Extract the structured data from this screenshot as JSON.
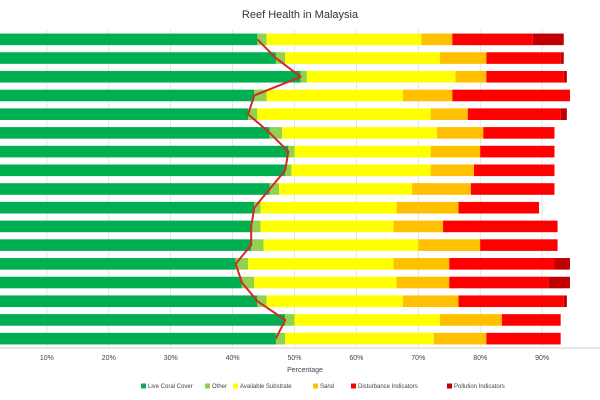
{
  "chart_data": {
    "type": "bar",
    "orientation": "horizontal",
    "stacked": true,
    "title": "Reef Health in Malaysia",
    "xlabel": "Percentage",
    "ylabel": "",
    "xlim": [
      0,
      100
    ],
    "x_ticks": [
      "10%",
      "20%",
      "30%",
      "40%",
      "50%",
      "60%",
      "70%",
      "80%",
      "90%"
    ],
    "x_tick_values": [
      10,
      20,
      30,
      40,
      50,
      60,
      70,
      80,
      90
    ],
    "grid": true,
    "legend_position": "bottom",
    "category_count": 17,
    "series": [
      {
        "name": "Live Coral Cover",
        "color": "#00b050",
        "values": [
          44,
          47,
          51,
          43.5,
          42.5,
          46,
          49,
          48.5,
          46,
          43.5,
          43,
          43,
          40.5,
          41.5,
          44,
          48.5,
          47
        ]
      },
      {
        "name": "Other",
        "color": "#92d050",
        "values": [
          1.5,
          1.5,
          1,
          2,
          1.5,
          2,
          1,
          1,
          1.5,
          1,
          1.5,
          2,
          2,
          2,
          1.5,
          1.5,
          1.5
        ]
      },
      {
        "name": "Available Substrate",
        "color": "#ffff00",
        "values": [
          25,
          25,
          24,
          22,
          28,
          25,
          22,
          22.5,
          21.5,
          22,
          21.5,
          25,
          23.5,
          23,
          22,
          23.5,
          24
        ]
      },
      {
        "name": "Sand",
        "color": "#ffc000",
        "values": [
          5,
          7.5,
          5,
          8,
          6,
          7.5,
          8,
          7,
          9.5,
          10,
          8,
          10,
          9,
          8.5,
          9,
          10,
          8.5
        ]
      },
      {
        "name": "Disturbance Indicators",
        "color": "#ff0000",
        "values": [
          13,
          12,
          12.5,
          19,
          15,
          11.5,
          12,
          13,
          13.5,
          13,
          18.5,
          12.5,
          17,
          16,
          17,
          9.5,
          12
        ]
      },
      {
        "name": "Pollution Indicators",
        "color": "#c00000",
        "values": [
          5,
          0.5,
          0.5,
          0,
          1,
          0,
          0,
          0,
          0,
          0,
          0,
          0,
          2.5,
          3.5,
          0.5,
          0,
          0
        ]
      }
    ],
    "line": {
      "color": "#d02a2a",
      "points_series": "Live Coral Cover (end of first segment)"
    }
  }
}
